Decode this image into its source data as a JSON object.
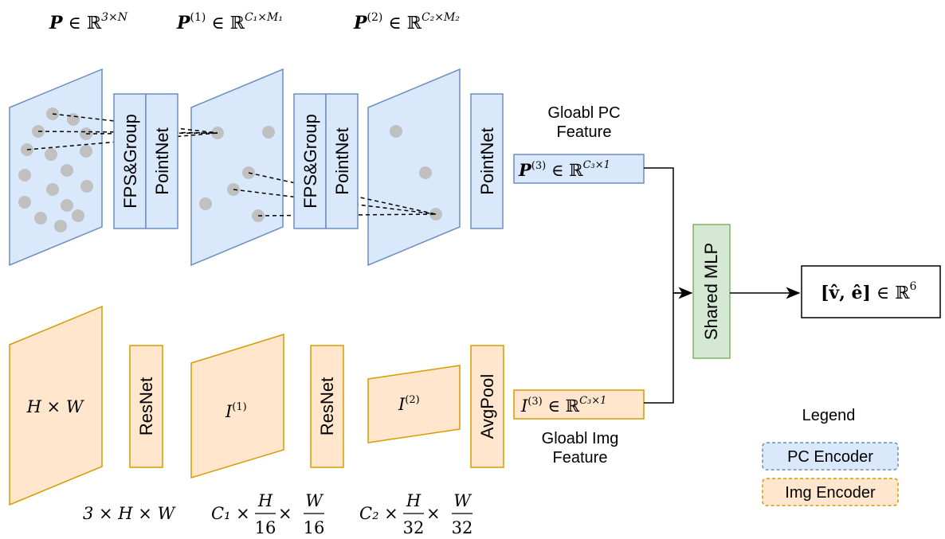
{
  "colors": {
    "pc_fill": "#dae8fc",
    "pc_stroke": "#6c8ebf",
    "img_fill": "#ffe6cc",
    "img_stroke": "#d79b00",
    "mlp_fill": "#d5e8d4",
    "mlp_stroke": "#82b366",
    "point": "#c0c0c0",
    "line": "#000000"
  },
  "top_labels": {
    "p": {
      "base": "P",
      "mid": " ∈ ℝ",
      "sup": "3×N"
    },
    "p1": {
      "base": "P",
      "ix": "(1)",
      "mid": " ∈ ℝ",
      "sup": "C₁×M₁"
    },
    "p2": {
      "base": "P",
      "ix": "(2)",
      "mid": " ∈ ℝ",
      "sup": "C₂×M₂"
    }
  },
  "pc_blocks": {
    "fps1": "FPS&Group",
    "pointnet1": "PointNet",
    "fps2": "FPS&Group",
    "pointnet2": "PointNet",
    "pointnet3": "PointNet"
  },
  "global_pc": {
    "caption_line1": "Gloabl PC",
    "caption_line2": "Feature",
    "base": "P",
    "ix": "(3)",
    "mid": " ∈ ℝ",
    "sup": "C₃×1"
  },
  "img_blocks": {
    "input": "H × W",
    "resnet1": "ResNet",
    "i1": {
      "base": "I",
      "ix": "(1)"
    },
    "resnet2": "ResNet",
    "i2": {
      "base": "I",
      "ix": "(2)"
    },
    "avgpool": "AvgPool"
  },
  "global_img": {
    "base": "I",
    "ix": "(3)",
    "mid": " ∈ ℝ",
    "sup": "C₃×1",
    "caption_line1": "Gloabl Img",
    "caption_line2": "Feature"
  },
  "shared_mlp": "Shared MLP",
  "output": {
    "lhs": "[v̂, ê]",
    "mid": " ∈ ℝ",
    "sup": "6"
  },
  "bottom_labels": {
    "b1": "3 × H × W",
    "b2": {
      "pre": "C₁ × ",
      "n1": "H",
      "d1": "16",
      "op": " × ",
      "n2": "W",
      "d2": "16"
    },
    "b3": {
      "pre": "C₂ × ",
      "n1": "H",
      "d1": "32",
      "op": " × ",
      "n2": "W",
      "d2": "32"
    }
  },
  "legend": {
    "title": "Legend",
    "pc": "PC Encoder",
    "img": "Img Encoder"
  }
}
